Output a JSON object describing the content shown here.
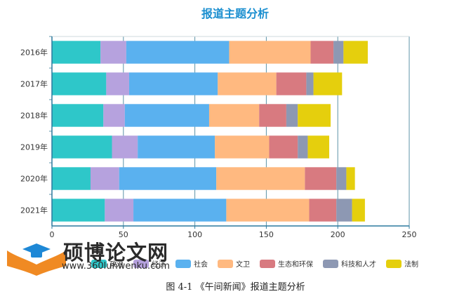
{
  "chart_data": {
    "type": "bar",
    "orientation": "horizontal",
    "stacked": true,
    "title": "报道主题分析",
    "categories": [
      "2016年",
      "2017年",
      "2018年",
      "2019年",
      "2020年",
      "2021年"
    ],
    "xlim": [
      0,
      250
    ],
    "xticks": [
      0,
      50,
      100,
      150,
      200,
      250
    ],
    "grid": true,
    "legend_position": "bottom",
    "series": [
      {
        "name": "政治",
        "color": "#2ec7c9",
        "values": [
          34,
          38,
          36,
          42,
          27,
          37
        ]
      },
      {
        "name": "经济",
        "color": "#b6a2de",
        "values": [
          18,
          16,
          15,
          18,
          20,
          20
        ]
      },
      {
        "name": "社会",
        "color": "#5ab1ef",
        "values": [
          72,
          62,
          59,
          54,
          68,
          65
        ]
      },
      {
        "name": "文卫",
        "color": "#ffb980",
        "values": [
          57,
          41,
          35,
          38,
          62,
          58
        ]
      },
      {
        "name": "生态和环保",
        "color": "#d87a80",
        "values": [
          16,
          21,
          19,
          20,
          22,
          19
        ]
      },
      {
        "name": "科技和人才",
        "color": "#8d98b3",
        "values": [
          7,
          5,
          8,
          7,
          7,
          11
        ]
      },
      {
        "name": "法制",
        "color": "#e5cf0d",
        "values": [
          17,
          20,
          23,
          15,
          6,
          9
        ]
      }
    ]
  },
  "caption": "图 4-1    《午间新闻》报道主题分析",
  "watermark": {
    "brand": "硕博论文网",
    "url": "www.360lunwenku.com"
  }
}
